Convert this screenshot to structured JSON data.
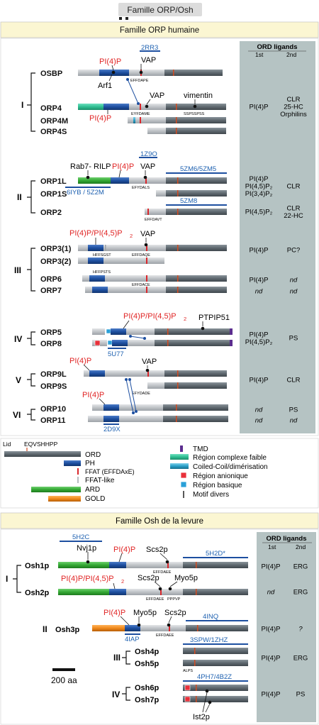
{
  "page_title": "Famille ORP/Osh",
  "human": {
    "header": "Famille ORP humaine",
    "ligand_title": "ORD ligands",
    "col1": "1st",
    "col2": "2nd",
    "groups": [
      "I",
      "II",
      "III",
      "IV",
      "V",
      "VI"
    ],
    "proteins": [
      "OSBP",
      "ORP4",
      "ORP4M",
      "ORP4S",
      "ORP1L",
      "ORP1S",
      "ORP2",
      "ORP3(1)",
      "ORP3(2)",
      "ORP6",
      "ORP7",
      "ORP5",
      "ORP8",
      "ORP9L",
      "ORP9S",
      "ORP10",
      "ORP11"
    ],
    "lipid_labels": {
      "osbp": "PI(4)P",
      "orp4": "PI(4)P",
      "orp1": "PI(4)P",
      "orp3": "PI(4)P/PI(4,5)P",
      "orp3_sub": "2",
      "orp5": "PI(4)P/PI(4,5)P",
      "orp5_sub": "2",
      "orp9": "PI(4)P",
      "orp10": "PI(4)P"
    },
    "partners": {
      "vap1": "VAP",
      "arf1": "Arf1",
      "vap2": "VAP",
      "vimentin": "vimentin",
      "rab7": "Rab7- RILP",
      "vap3": "VAP",
      "vap4": "VAP",
      "ptpip51": "PTPIP51",
      "vap5": "VAP"
    },
    "pdb": {
      "p2rr3": "2RR3",
      "p1z9o": "1Z9O",
      "p5zm6": "5ZM6/5ZM5",
      "p6iyb": "6IYB / 5Z2M",
      "p5zm8": "5ZM8",
      "p5u77": "5U77",
      "p2d9x": "2D9X"
    },
    "motifs": {
      "m_effdape": "EFFDAPE",
      "m_eyfdame": "EYFDAME",
      "m_ssps": "SSPSSPSS",
      "m_efydals": "EFYDALS",
      "m_effdavt": "EFFDAVT",
      "m_hffsgst": "HFFSGST",
      "m_effdaqe": "EFFDAQE",
      "m_hffpsts": "HFFPSTS",
      "m_effdace": "EFFDACE",
      "m_efydade": "EFYDADE"
    },
    "ligands": [
      {
        "c1": "PI(4)P",
        "c2": "CLR\n25-HC\nOrphilins"
      },
      {
        "c1": "PI(4)P\nPI(4,5)P₂\nPI(3,4)P₂",
        "c2": "CLR"
      },
      {
        "c1": "PI(4,5)P₂",
        "c2": "CLR\n22-HC"
      },
      {
        "c1": "PI(4)P",
        "c2": "PC?"
      },
      {
        "c1": "PI(4)P",
        "c2": "nd"
      },
      {
        "c1": "nd",
        "c2": "nd"
      },
      {
        "c1": "PI(4)P\nPI(4,5)P₂",
        "c2": "PS"
      },
      {
        "c1": "PI(4)P",
        "c2": "CLR"
      },
      {
        "c1": "nd",
        "c2": "PS"
      },
      {
        "c1": "nd",
        "c2": "nd"
      }
    ]
  },
  "legend": {
    "lid": "Lid",
    "lid_seq": "EQVSHHPP",
    "ord": "ORD",
    "ph": "PH",
    "ffat": "FFAT (EFFDAxE)",
    "ffat_like": "FFAT-like",
    "ard": "ARD",
    "gold": "GOLD",
    "tmd": "TMD",
    "low_complex": "Région complexe faible",
    "coiled": "Coiled-Coil/dimérisation",
    "anionic": "Région anionique",
    "basic": "Région basique",
    "misc": "Motif divers"
  },
  "yeast": {
    "header": "Famille Osh de la levure",
    "ligand_title": "ORD ligands",
    "col1": "1st",
    "col2": "2nd",
    "groups": [
      "I",
      "II",
      "III",
      "IV"
    ],
    "proteins": [
      "Osh1p",
      "Osh2p",
      "Osh3p",
      "Osh4p",
      "Osh5p",
      "Osh6p",
      "Osh7p"
    ],
    "lipid_labels": {
      "osh1": "PI(4)P",
      "osh2": "PI(4)P/PI(4,5)P",
      "osh2_sub": "2",
      "osh3": "PI(4)P"
    },
    "partners": {
      "nvj1": "Nvj1p",
      "scs2a": "Scs2p",
      "scs2b": "Scs2p",
      "myo5a": "Myo5p",
      "myo5b": "Myo5p",
      "scs2c": "Scs2p",
      "ist2": "Ist2p"
    },
    "pdb": {
      "p5h2c": "5H2C",
      "p5h2d": "5H2D*",
      "p4inq": "4INQ",
      "p4iap": "4IAP",
      "p3spw": "3SPW/1ZHZ",
      "p4ph7": "4PH7/4B2Z"
    },
    "motifs": {
      "m_effdaee1": "EFFDAEE",
      "m_effdaee2": "EFFDAEE",
      "m_ppppvp": "PPPVP",
      "m_effdaee3": "EFFDAEE",
      "m_alps": "ALPS"
    },
    "ligands": [
      {
        "c1": "PI(4)P",
        "c2": "ERG"
      },
      {
        "c1": "nd",
        "c2": "ERG"
      },
      {
        "c1": "PI(4)P",
        "c2": "?"
      },
      {
        "c1": "PI(4)P",
        "c2": "ERG"
      },
      {
        "c1": "PI(4)P",
        "c2": "PS"
      }
    ],
    "scale": "200 aa"
  },
  "colors": {
    "ord": "#616b72",
    "ph": "#1d4fa0",
    "ffat": "#d9262b",
    "ffat_like": "#b7bcc1",
    "ard": "#3aaa3a",
    "gold": "#f08a1c",
    "tmd": "#5b2d8e",
    "low_complex": "#2fbf92",
    "coiled": "#2aa0c8",
    "anionic": "#e8303a",
    "basic": "#2aa0d8",
    "panel": "#b5c3c3",
    "header_bg": "#fbf6d2"
  }
}
